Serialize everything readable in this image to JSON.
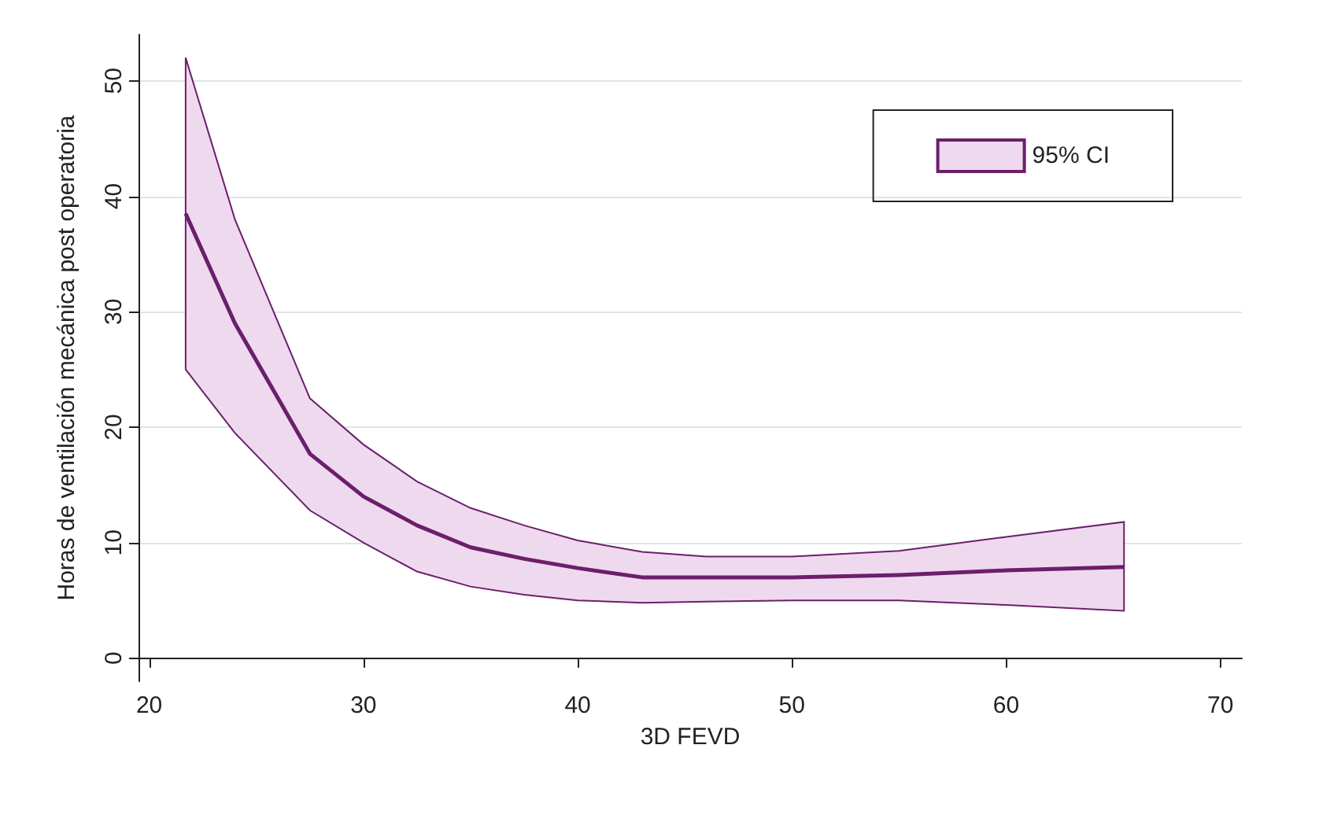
{
  "chart_data": {
    "type": "line",
    "xlabel": "3D FEVD",
    "ylabel": "Horas de ventilación mecánica post operatoria",
    "x": [
      21.7,
      24,
      27.5,
      30,
      32.5,
      35,
      37.5,
      40,
      43,
      46,
      50,
      55,
      60,
      65.5
    ],
    "series": [
      {
        "name": "95% CI",
        "color": "#6b1f6b",
        "values": [
          38.5,
          29,
          17.7,
          14,
          11.5,
          9.6,
          8.6,
          7.8,
          7,
          7,
          7,
          7.2,
          7.6,
          7.9
        ],
        "lower": [
          25,
          19.5,
          12.8,
          10,
          7.5,
          6.2,
          5.5,
          5,
          4.8,
          4.9,
          5,
          5,
          4.6,
          4.1
        ],
        "upper": [
          52,
          38,
          22.5,
          18.5,
          15.3,
          13,
          11.5,
          10.2,
          9.2,
          8.8,
          8.8,
          9.3,
          10.5,
          11.8
        ]
      }
    ],
    "xlim": [
      19.5,
      71
    ],
    "xticks": [
      20,
      30,
      40,
      50,
      60,
      70
    ],
    "ylim": [
      -2,
      54
    ],
    "yticks": [
      0,
      10,
      20,
      30,
      40,
      50
    ],
    "grid": "y",
    "legend": "top right",
    "marker": "none",
    "line_style": "solid"
  }
}
